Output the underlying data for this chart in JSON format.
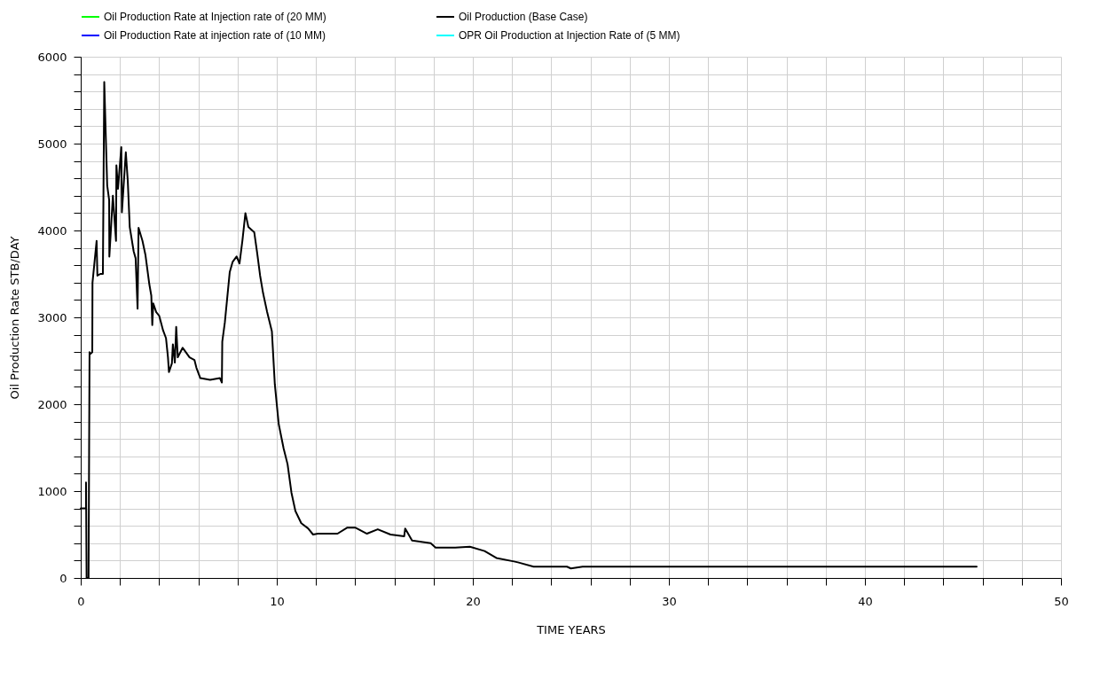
{
  "chart_data": {
    "type": "line",
    "xlabel": "TIME  YEARS",
    "ylabel": "Oil Production Rate  STB/DAY",
    "xlim": [
      0,
      50
    ],
    "ylim": [
      0,
      6000
    ],
    "xticks": [
      0,
      {
        "value": 2,
        "label": null
      },
      {
        "value": 4,
        "label": null
      },
      {
        "value": 6,
        "label": null
      },
      {
        "value": 8,
        "label": null
      },
      10,
      {
        "value": 12,
        "label": null
      },
      {
        "value": 14,
        "label": null
      },
      {
        "value": 16,
        "label": null
      },
      {
        "value": 18,
        "label": null
      },
      20,
      {
        "value": 22,
        "label": null
      },
      {
        "value": 24,
        "label": null
      },
      {
        "value": 26,
        "label": null
      },
      {
        "value": 28,
        "label": null
      },
      30,
      {
        "value": 32,
        "label": null
      },
      {
        "value": 34,
        "label": null
      },
      {
        "value": 36,
        "label": null
      },
      {
        "value": 38,
        "label": null
      },
      40,
      {
        "value": 42,
        "label": null
      },
      {
        "value": 44,
        "label": null
      },
      {
        "value": 46,
        "label": null
      },
      {
        "value": 48,
        "label": null
      },
      50
    ],
    "yticks": [
      0,
      {
        "value": 200,
        "label": null
      },
      {
        "value": 400,
        "label": null
      },
      {
        "value": 600,
        "label": null
      },
      {
        "value": 800,
        "label": null
      },
      1000,
      {
        "value": 1200,
        "label": null
      },
      {
        "value": 1400,
        "label": null
      },
      {
        "value": 1600,
        "label": null
      },
      {
        "value": 1800,
        "label": null
      },
      2000,
      {
        "value": 2200,
        "label": null
      },
      {
        "value": 2400,
        "label": null
      },
      {
        "value": 2600,
        "label": null
      },
      {
        "value": 2800,
        "label": null
      },
      3000,
      {
        "value": 3200,
        "label": null
      },
      {
        "value": 3400,
        "label": null
      },
      {
        "value": 3600,
        "label": null
      },
      {
        "value": 3800,
        "label": null
      },
      4000,
      {
        "value": 4200,
        "label": null
      },
      {
        "value": 4400,
        "label": null
      },
      {
        "value": 4600,
        "label": null
      },
      {
        "value": 4800,
        "label": null
      },
      5000,
      {
        "value": 5200,
        "label": null
      },
      {
        "value": 5400,
        "label": null
      },
      {
        "value": 5600,
        "label": null
      },
      {
        "value": 5800,
        "label": null
      },
      6000
    ],
    "grid": true,
    "legend": "top left",
    "marker": "none",
    "line_style": "solid",
    "series": [
      {
        "name": "Oil Production Rate at Injection rate of (20 MM)",
        "color": "#00ff00"
      },
      {
        "name": "Oil Production (Base Case)",
        "color": "#000000",
        "x": [
          0,
          0.27,
          0.27,
          0.3,
          0.4,
          0.45,
          0.45,
          0.59,
          0.6,
          0.81,
          0.85,
          1.0,
          1.13,
          1.2,
          1.35,
          1.45,
          1.46,
          1.64,
          1.8,
          1.82,
          1.9,
          2.07,
          2.1,
          2.3,
          2.4,
          2.5,
          2.7,
          2.8,
          2.9,
          2.95,
          3.15,
          3.3,
          3.5,
          3.6,
          3.65,
          3.7,
          3.85,
          4.0,
          4.2,
          4.35,
          4.45,
          4.5,
          4.65,
          4.7,
          4.8,
          4.87,
          4.95,
          5.2,
          5.55,
          5.8,
          5.9,
          6.1,
          6.6,
          7.1,
          7.2,
          7.22,
          7.35,
          7.6,
          7.75,
          7.95,
          8.1,
          8.25,
          8.4,
          8.55,
          8.85,
          9.0,
          9.15,
          9.3,
          9.5,
          9.75,
          9.9,
          10.1,
          10.35,
          10.55,
          10.75,
          10.95,
          11.25,
          11.6,
          11.85,
          12.1,
          13.1,
          13.6,
          14.0,
          14.6,
          15.15,
          15.8,
          16.5,
          16.55,
          16.9,
          17.85,
          18.1,
          19.1,
          19.85,
          20.6,
          21.2,
          22.1,
          22.3,
          23.1,
          24.8,
          25.0,
          25.6,
          45.7
        ],
        "values": [
          800,
          800,
          1100,
          0,
          0,
          2600,
          2570,
          2600,
          3400,
          3880,
          3480,
          3500,
          3500,
          5710,
          4520,
          4350,
          3700,
          4400,
          3880,
          4750,
          4480,
          4960,
          4210,
          4900,
          4570,
          4040,
          3760,
          3680,
          3100,
          4030,
          3880,
          3720,
          3380,
          3250,
          2910,
          3160,
          3060,
          3020,
          2850,
          2760,
          2540,
          2370,
          2470,
          2690,
          2480,
          2890,
          2540,
          2650,
          2540,
          2510,
          2420,
          2300,
          2280,
          2300,
          2250,
          2720,
          2940,
          3520,
          3640,
          3700,
          3620,
          3890,
          4200,
          4040,
          3980,
          3740,
          3480,
          3280,
          3070,
          2840,
          2230,
          1770,
          1490,
          1310,
          980,
          770,
          630,
          570,
          500,
          510,
          510,
          580,
          580,
          510,
          560,
          500,
          480,
          570,
          430,
          400,
          350,
          350,
          360,
          310,
          230,
          190,
          180,
          130,
          130,
          110,
          130,
          130
        ]
      },
      {
        "name": "Oil Production Rate at injection rate of (10 MM)",
        "color": "#0000ff"
      },
      {
        "name": "OPR Oil Production at Injection Rate of (5 MM)",
        "color": "#00ffff"
      }
    ]
  }
}
